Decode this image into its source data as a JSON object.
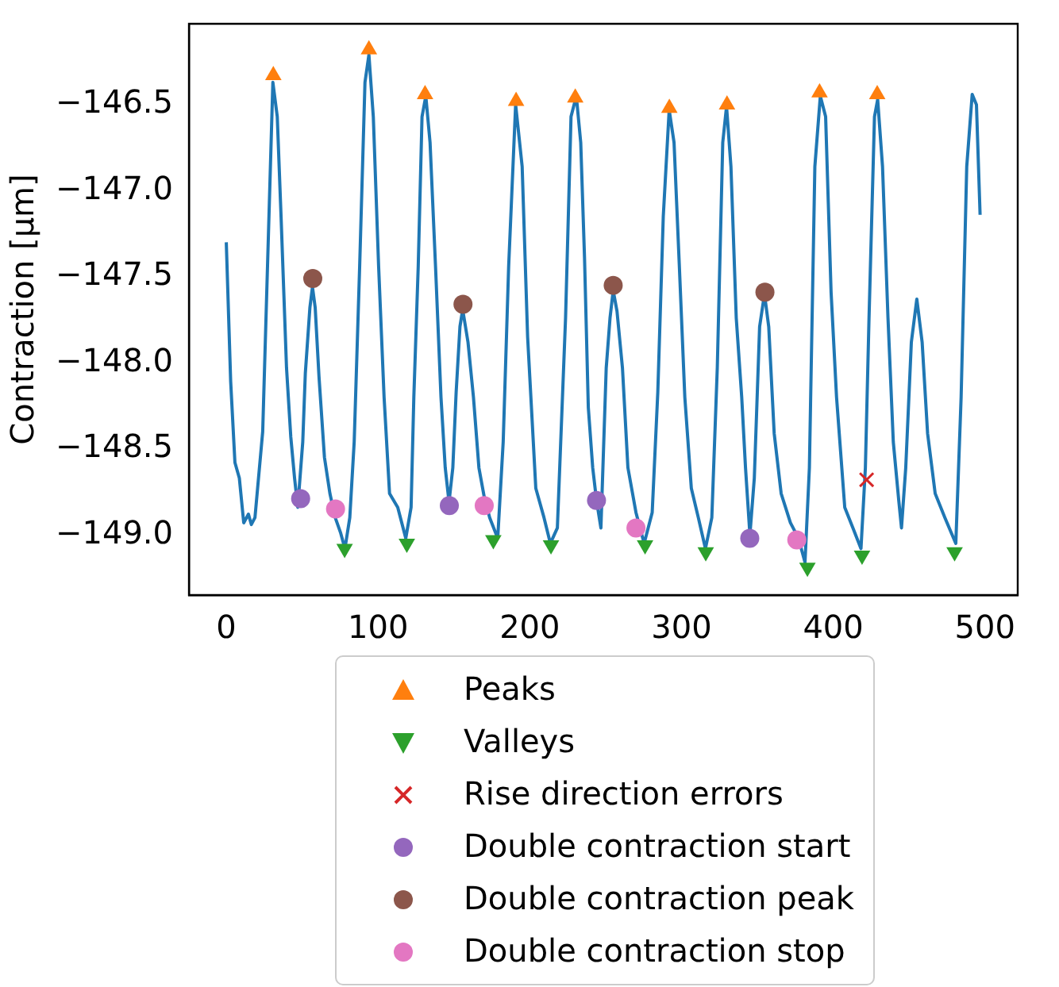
{
  "chart_data": {
    "type": "line",
    "ylabel": "Contraction [μm]",
    "xlim": [
      -24.6,
      521.6
    ],
    "xticks": [
      0,
      100,
      200,
      300,
      400,
      500
    ],
    "ylim": [
      -149.35,
      -146.03
    ],
    "yticks": [
      {
        "value": -146.5,
        "label": "−146.5"
      },
      {
        "value": -147.0,
        "label": "−147.0"
      },
      {
        "value": -147.5,
        "label": "−147.5"
      },
      {
        "value": -148.0,
        "label": "−148.0"
      },
      {
        "value": -148.5,
        "label": "−148.5"
      },
      {
        "value": -149.0,
        "label": "−149.0"
      }
    ],
    "grid": false,
    "legend": "bottom",
    "series": [
      {
        "color": "#1f77b4",
        "marker": "none",
        "x": [
          0,
          2.9,
          5.7,
          8.6,
          11.5,
          14.6,
          16.5,
          18.9,
          24,
          30.7,
          33.6,
          36.1,
          39.7,
          42.5,
          45,
          47.1,
          50.4,
          52.1,
          55.1,
          56.8,
          58.6,
          61.1,
          64.7,
          68.3,
          71.8,
          75.4,
          78.2,
          81.4,
          84.3,
          87.9,
          91.4,
          94,
          96.9,
          100.4,
          104,
          107.6,
          113,
          118.3,
          121.8,
          123.6,
          126.5,
          129,
          131.5,
          134.3,
          137.9,
          141.5,
          144.3,
          146.8,
          149.3,
          151.5,
          154,
          155.8,
          159.3,
          162.9,
          166.5,
          170,
          173.6,
          178.9,
          182.5,
          186.1,
          190.7,
          195,
          198.6,
          204,
          209.4,
          213.6,
          218.2,
          223.6,
          227.2,
          230.7,
          233.6,
          236.1,
          238.6,
          241.5,
          244,
          246.9,
          250.4,
          252.9,
          255,
          257.5,
          261.1,
          264.7,
          270,
          275.4,
          280.7,
          284.4,
          288,
          291.9,
          295.1,
          298.6,
          302.2,
          306.5,
          311.1,
          315.8,
          320,
          323.6,
          327.2,
          329.7,
          332.6,
          336.1,
          339.7,
          342.2,
          345.1,
          348,
          351.5,
          354.7,
          357.5,
          361.1,
          365.7,
          371.8,
          377.1,
          381.4,
          384.3,
          387.9,
          391.5,
          395,
          398.6,
          402.2,
          407.6,
          413,
          418.3,
          421.2,
          423.6,
          427.2,
          429.3,
          432.5,
          436.1,
          439.6,
          443.2,
          445,
          447.8,
          451.5,
          455.1,
          458.6,
          462.2,
          467.2,
          473.6,
          480.8,
          484.3,
          488,
          491.6,
          494.4,
          496.8
        ],
        "values": [
          -147.3,
          -148.11,
          -148.58,
          -148.67,
          -148.93,
          -148.88,
          -148.94,
          -148.9,
          -148.4,
          -146.37,
          -146.57,
          -147.15,
          -148.03,
          -148.43,
          -148.67,
          -148.84,
          -148.46,
          -148.06,
          -147.68,
          -147.56,
          -147.68,
          -148.08,
          -148.55,
          -148.76,
          -148.9,
          -148.99,
          -149.08,
          -148.9,
          -148.46,
          -147.44,
          -146.37,
          -146.21,
          -146.57,
          -147.44,
          -148.2,
          -148.76,
          -148.84,
          -149.02,
          -148.84,
          -148.2,
          -147.44,
          -146.57,
          -146.45,
          -146.72,
          -147.44,
          -148.2,
          -148.61,
          -148.81,
          -148.61,
          -148.17,
          -147.79,
          -147.69,
          -147.88,
          -148.2,
          -148.61,
          -148.78,
          -148.9,
          -149.02,
          -148.46,
          -147.44,
          -146.5,
          -146.86,
          -147.85,
          -148.73,
          -148.9,
          -149.05,
          -148.96,
          -147.74,
          -146.57,
          -146.45,
          -146.72,
          -147.39,
          -148.26,
          -148.61,
          -148.8,
          -148.96,
          -148.03,
          -147.74,
          -147.58,
          -147.7,
          -148.03,
          -148.61,
          -148.87,
          -149.05,
          -148.87,
          -148.17,
          -147.15,
          -146.53,
          -146.72,
          -147.44,
          -148.2,
          -148.73,
          -148.9,
          -149.08,
          -148.9,
          -148.03,
          -146.72,
          -146.51,
          -146.86,
          -147.74,
          -148.2,
          -148.61,
          -149.0,
          -148.67,
          -147.79,
          -147.6,
          -147.79,
          -148.41,
          -148.76,
          -148.93,
          -149.02,
          -149.16,
          -148.61,
          -146.86,
          -146.45,
          -146.57,
          -147.59,
          -148.2,
          -148.84,
          -148.96,
          -149.08,
          -148.61,
          -147.74,
          -146.57,
          -146.47,
          -146.86,
          -147.74,
          -148.46,
          -148.8,
          -148.96,
          -148.61,
          -147.88,
          -147.63,
          -147.88,
          -148.41,
          -148.76,
          -148.9,
          -149.05,
          -148.2,
          -146.86,
          -146.44,
          -146.5,
          -147.14
        ]
      },
      {
        "type": "scatter",
        "name": "Peaks",
        "color": "#ff7f0e",
        "marker": "triangle",
        "x": [
          31,
          94,
          131,
          191,
          230,
          292,
          330,
          391,
          429
        ],
        "values": [
          -146.33,
          -146.18,
          -146.44,
          -146.48,
          -146.46,
          -146.52,
          -146.5,
          -146.43,
          -146.44
        ]
      },
      {
        "type": "scatter",
        "name": "Valleys",
        "color": "#2ca02c",
        "marker": "triangle_down",
        "x": [
          78,
          119,
          176,
          214,
          276,
          316,
          383,
          419,
          480
        ],
        "values": [
          -149.08,
          -149.05,
          -149.03,
          -149.06,
          -149.06,
          -149.1,
          -149.19,
          -149.12,
          -149.1
        ]
      },
      {
        "type": "scatter",
        "name": "Rise direction errors",
        "color": "#d62728",
        "marker": "cross",
        "x": [
          422
        ],
        "values": [
          -148.68
        ]
      },
      {
        "type": "scatter",
        "name": "Double contraction start",
        "color": "#9467bd",
        "marker": "circle",
        "x": [
          49,
          147,
          244,
          345
        ],
        "values": [
          -148.79,
          -148.83,
          -148.8,
          -149.02
        ]
      },
      {
        "type": "scatter",
        "name": "Double contraction peak",
        "color": "#8c564b",
        "marker": "circle",
        "x": [
          57,
          156,
          255,
          355
        ],
        "values": [
          -147.51,
          -147.66,
          -147.55,
          -147.59
        ]
      },
      {
        "type": "scatter",
        "name": "Double contraction stop",
        "color": "#e377c2",
        "marker": "circle",
        "x": [
          72,
          170,
          270,
          376
        ],
        "values": [
          -148.85,
          -148.83,
          -148.96,
          -149.03
        ]
      }
    ]
  }
}
